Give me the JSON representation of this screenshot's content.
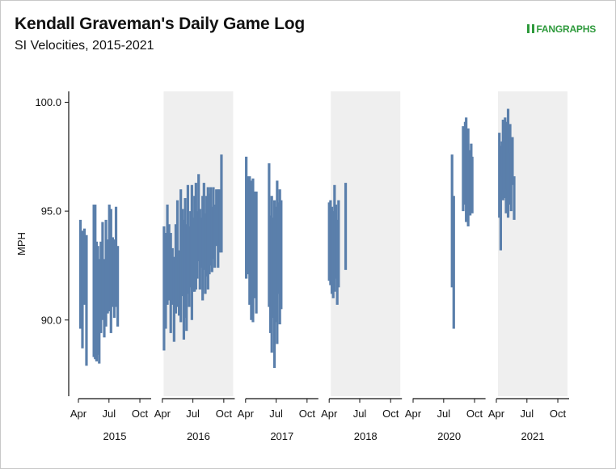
{
  "header": {
    "title": "Kendall Graveman's Daily Game Log",
    "subtitle": "SI Velocities, 2015-2021",
    "brand": "FANGRAPHS"
  },
  "chart_data": {
    "type": "bar",
    "description_of_marks": "floating range bars (daily min to max velocity)",
    "ylabel": "MPH",
    "ylim": [
      86.5,
      100.5
    ],
    "yticks": [
      90.0,
      95.0,
      100.0
    ],
    "ytick_labels": [
      "90.0",
      "95.0",
      "100.0"
    ],
    "xtick_labels": [
      "Apr",
      "Jul",
      "Oct"
    ],
    "bar_color": "#5a7fab",
    "shaded_panel_color": "#efefef",
    "panels": [
      {
        "year": "2015",
        "shaded": false,
        "games": [
          [
            "2015-04-07",
            89.6,
            94.6
          ],
          [
            "2015-04-13",
            88.7,
            94.1
          ],
          [
            "2015-04-19",
            90.7,
            94.2
          ],
          [
            "2015-04-25",
            87.9,
            93.9
          ],
          [
            "2015-05-17",
            88.3,
            95.3
          ],
          [
            "2015-05-21",
            88.2,
            95.3
          ],
          [
            "2015-05-25",
            88.1,
            93.6
          ],
          [
            "2015-05-29",
            88.4,
            93.4
          ],
          [
            "2015-06-02",
            88.0,
            92.8
          ],
          [
            "2015-06-07",
            89.4,
            93.6
          ],
          [
            "2015-06-12",
            90.0,
            94.5
          ],
          [
            "2015-06-17",
            89.2,
            92.8
          ],
          [
            "2015-06-22",
            89.7,
            94.6
          ],
          [
            "2015-06-27",
            90.3,
            93.7
          ],
          [
            "2015-07-02",
            90.4,
            95.3
          ],
          [
            "2015-07-07",
            89.4,
            95.1
          ],
          [
            "2015-07-12",
            90.6,
            93.8
          ],
          [
            "2015-07-17",
            90.1,
            93.7
          ],
          [
            "2015-07-22",
            90.6,
            95.2
          ],
          [
            "2015-07-27",
            89.7,
            93.4
          ]
        ]
      },
      {
        "year": "2016",
        "shaded": true,
        "games": [
          [
            "2016-04-06",
            88.6,
            94.3
          ],
          [
            "2016-04-11",
            89.6,
            94.0
          ],
          [
            "2016-04-16",
            90.7,
            95.3
          ],
          [
            "2016-04-21",
            90.9,
            94.4
          ],
          [
            "2016-04-26",
            89.4,
            94.0
          ],
          [
            "2016-05-01",
            90.7,
            93.3
          ],
          [
            "2016-05-06",
            89.0,
            92.9
          ],
          [
            "2016-05-11",
            90.3,
            94.4
          ],
          [
            "2016-05-16",
            90.6,
            95.5
          ],
          [
            "2016-05-21",
            90.2,
            93.2
          ],
          [
            "2016-05-26",
            89.9,
            96.0
          ],
          [
            "2016-05-31",
            91.1,
            95.1
          ],
          [
            "2016-06-04",
            89.1,
            94.6
          ],
          [
            "2016-06-08",
            90.1,
            95.6
          ],
          [
            "2016-06-12",
            89.5,
            94.4
          ],
          [
            "2016-06-16",
            91.2,
            96.2
          ],
          [
            "2016-06-20",
            90.6,
            94.3
          ],
          [
            "2016-06-24",
            91.5,
            95.0
          ],
          [
            "2016-06-28",
            90.0,
            96.2
          ],
          [
            "2016-07-02",
            91.3,
            94.7
          ],
          [
            "2016-07-06",
            91.3,
            95.7
          ],
          [
            "2016-07-10",
            91.4,
            96.3
          ],
          [
            "2016-07-14",
            91.9,
            95.0
          ],
          [
            "2016-07-18",
            92.7,
            96.7
          ],
          [
            "2016-07-22",
            91.4,
            95.1
          ],
          [
            "2016-07-26",
            92.4,
            94.7
          ],
          [
            "2016-07-30",
            90.9,
            95.7
          ],
          [
            "2016-08-03",
            92.3,
            96.3
          ],
          [
            "2016-08-07",
            91.2,
            94.9
          ],
          [
            "2016-08-11",
            92.0,
            95.7
          ],
          [
            "2016-08-15",
            91.4,
            96.1
          ],
          [
            "2016-08-19",
            92.1,
            95.8
          ],
          [
            "2016-08-23",
            92.5,
            96.1
          ],
          [
            "2016-08-27",
            92.2,
            95.2
          ],
          [
            "2016-08-31",
            92.8,
            96.1
          ],
          [
            "2016-09-04",
            92.4,
            95.3
          ],
          [
            "2016-09-09",
            93.4,
            96.0
          ],
          [
            "2016-09-14",
            92.4,
            96.0
          ],
          [
            "2016-09-19",
            93.1,
            96.0
          ],
          [
            "2016-09-24",
            93.1,
            97.6
          ]
        ]
      },
      {
        "year": "2017",
        "shaded": false,
        "games": [
          [
            "2017-04-03",
            91.9,
            97.5
          ],
          [
            "2017-04-08",
            92.1,
            96.6
          ],
          [
            "2017-04-13",
            90.7,
            96.6
          ],
          [
            "2017-04-18",
            90.0,
            96.4
          ],
          [
            "2017-04-23",
            89.9,
            96.5
          ],
          [
            "2017-04-28",
            91.0,
            95.9
          ],
          [
            "2017-05-03",
            90.3,
            95.9
          ],
          [
            "2017-06-10",
            90.6,
            97.2
          ],
          [
            "2017-06-14",
            89.4,
            94.8
          ],
          [
            "2017-06-18",
            88.5,
            95.7
          ],
          [
            "2017-06-22",
            90.1,
            94.7
          ],
          [
            "2017-06-26",
            87.8,
            95.5
          ],
          [
            "2017-06-30",
            89.9,
            95.2
          ],
          [
            "2017-07-04",
            88.9,
            96.4
          ],
          [
            "2017-07-08",
            91.2,
            95.4
          ],
          [
            "2017-07-12",
            89.8,
            96.0
          ],
          [
            "2017-07-16",
            90.5,
            95.5
          ]
        ]
      },
      {
        "year": "2018",
        "shaded": true,
        "games": [
          [
            "2018-04-01",
            91.8,
            95.4
          ],
          [
            "2018-04-05",
            91.6,
            95.5
          ],
          [
            "2018-04-09",
            91.2,
            95.2
          ],
          [
            "2018-04-13",
            91.0,
            95.0
          ],
          [
            "2018-04-17",
            91.3,
            96.2
          ],
          [
            "2018-04-21",
            91.9,
            95.3
          ],
          [
            "2018-04-25",
            90.7,
            94.6
          ],
          [
            "2018-04-29",
            91.5,
            95.5
          ],
          [
            "2018-05-20",
            92.3,
            96.3
          ]
        ]
      },
      {
        "year": "2020",
        "shaded": false,
        "games": [
          [
            "2020-07-26",
            91.5,
            97.6
          ],
          [
            "2020-07-31",
            89.6,
            95.7
          ],
          [
            "2020-08-28",
            95.0,
            98.9
          ],
          [
            "2020-08-31",
            95.4,
            98.3
          ],
          [
            "2020-09-03",
            95.3,
            99.1
          ],
          [
            "2020-09-06",
            94.5,
            99.3
          ],
          [
            "2020-09-09",
            94.8,
            97.7
          ],
          [
            "2020-09-12",
            94.3,
            98.8
          ],
          [
            "2020-09-15",
            95.2,
            97.3
          ],
          [
            "2020-09-18",
            94.8,
            97.8
          ],
          [
            "2020-09-21",
            95.5,
            98.1
          ],
          [
            "2020-09-24",
            94.9,
            97.5
          ]
        ]
      },
      {
        "year": "2021",
        "shaded": true,
        "games": [
          [
            "2021-04-10",
            94.7,
            98.6
          ],
          [
            "2021-04-14",
            93.2,
            98.0
          ],
          [
            "2021-04-18",
            96.6,
            98.2
          ],
          [
            "2021-04-21",
            95.5,
            99.2
          ],
          [
            "2021-04-24",
            95.9,
            98.4
          ],
          [
            "2021-04-27",
            95.6,
            99.3
          ],
          [
            "2021-04-30",
            94.9,
            98.8
          ],
          [
            "2021-05-03",
            96.0,
            99.1
          ],
          [
            "2021-05-06",
            94.7,
            99.7
          ],
          [
            "2021-05-09",
            95.6,
            98.4
          ],
          [
            "2021-05-12",
            95.3,
            99.0
          ],
          [
            "2021-05-15",
            95.0,
            97.7
          ],
          [
            "2021-05-19",
            96.2,
            98.4
          ],
          [
            "2021-05-24",
            94.6,
            96.6
          ]
        ]
      }
    ]
  }
}
